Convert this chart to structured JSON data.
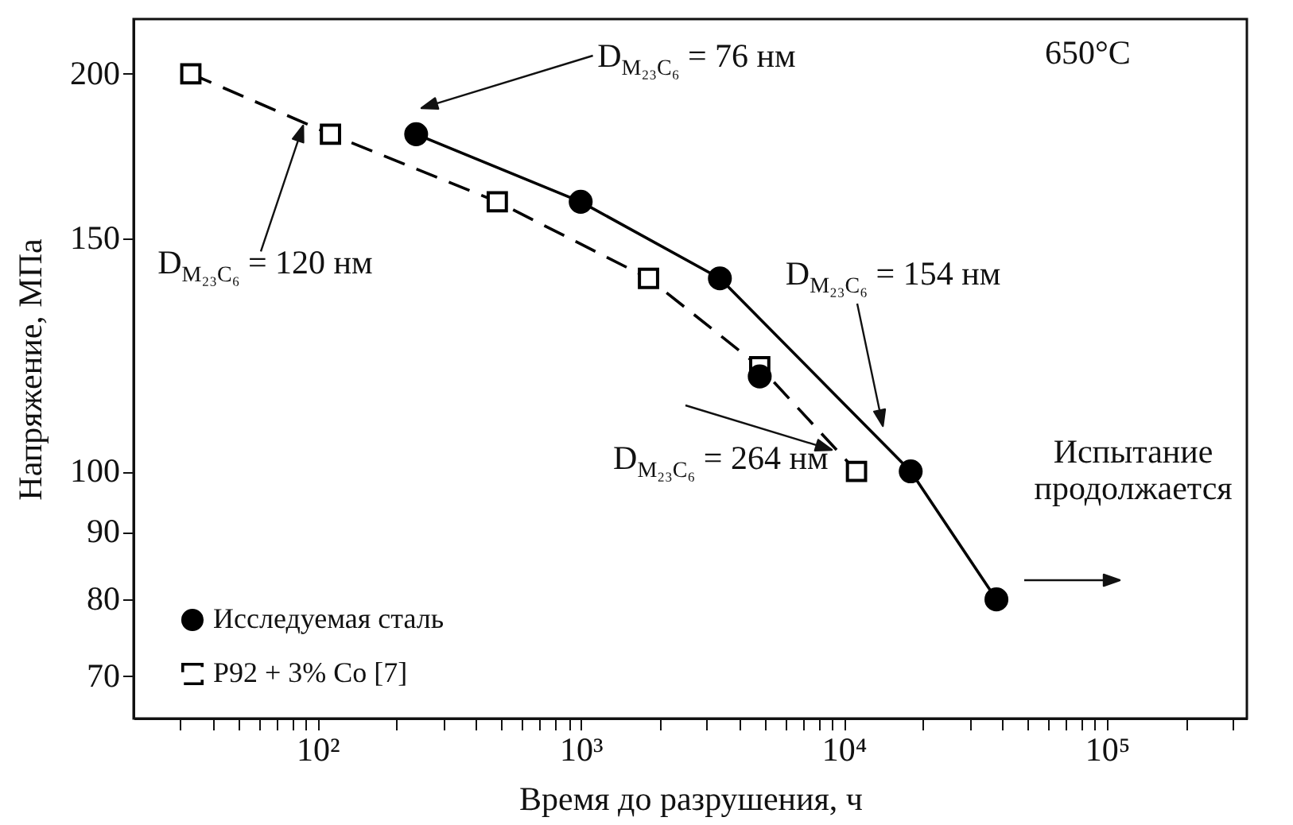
{
  "chart_data": {
    "type": "line",
    "xlabel": "Время до разрушения, ч",
    "ylabel": "Напряжение, МПа",
    "log": "xy",
    "xlim": [
      20,
      340000
    ],
    "ylim": [
      65,
      220
    ],
    "xticks": [
      {
        "value": 100,
        "label": "10²"
      },
      {
        "value": 1000,
        "label": "10³"
      },
      {
        "value": 10000,
        "label": "10⁴"
      },
      {
        "value": 100000,
        "label": "10⁵"
      },
      {
        "value": 30,
        "label": null
      },
      {
        "value": 40,
        "label": null
      },
      {
        "value": 50,
        "label": null
      },
      {
        "value": 60,
        "label": null
      },
      {
        "value": 70,
        "label": null
      },
      {
        "value": 80,
        "label": null
      },
      {
        "value": 90,
        "label": null
      },
      {
        "value": 200,
        "label": null
      },
      {
        "value": 300,
        "label": null
      },
      {
        "value": 400,
        "label": null
      },
      {
        "value": 500,
        "label": null
      },
      {
        "value": 600,
        "label": null
      },
      {
        "value": 700,
        "label": null
      },
      {
        "value": 800,
        "label": null
      },
      {
        "value": 900,
        "label": null
      },
      {
        "value": 2000,
        "label": null
      },
      {
        "value": 3000,
        "label": null
      },
      {
        "value": 4000,
        "label": null
      },
      {
        "value": 5000,
        "label": null
      },
      {
        "value": 6000,
        "label": null
      },
      {
        "value": 7000,
        "label": null
      },
      {
        "value": 8000,
        "label": null
      },
      {
        "value": 9000,
        "label": null
      },
      {
        "value": 20000,
        "label": null
      },
      {
        "value": 30000,
        "label": null
      },
      {
        "value": 40000,
        "label": null
      },
      {
        "value": 50000,
        "label": null
      },
      {
        "value": 60000,
        "label": null
      },
      {
        "value": 70000,
        "label": null
      },
      {
        "value": 80000,
        "label": null
      },
      {
        "value": 90000,
        "label": null
      },
      {
        "value": 200000,
        "label": null
      },
      {
        "value": 300000,
        "label": null
      }
    ],
    "yticks": [
      70,
      80,
      90,
      100,
      150,
      200
    ],
    "grid": false,
    "legend": "bottom left",
    "series": [
      {
        "name": "Исследуемая сталь",
        "type": "line",
        "marker": "circle",
        "line_style": "solid",
        "color": "#000000",
        "x": [
          237,
          1000,
          3380,
          17950,
          38000
        ],
        "values": [
          180,
          160,
          140,
          100,
          80
        ]
      },
      {
        "type": "scatter",
        "marker": "circle",
        "color": "#000000",
        "x": [
          4790
        ],
        "values": [
          118
        ]
      },
      {
        "name": "P92 + 3% Co [7]",
        "type": "line",
        "marker": "square",
        "line_style": "dashed",
        "color": "#000000",
        "x": [
          33,
          112,
          482,
          1810,
          4790,
          11170
        ],
        "values": [
          200,
          180,
          160,
          140,
          120,
          100
        ]
      }
    ],
    "annotations": [
      "D$_{M₂₃C₆}$ = 76 нм",
      "D$_{M₂₃C₆}$ = 120 нм",
      "D$_{M₂₃C₆}$ = 154 нм",
      {
        "text": "D$_{M₂₃C₆}$ = 264 нм",
        "x": 11170,
        "y": 100
      },
      "650°C",
      {
        "text": "Испытание продолжается",
        "x": 38000,
        "y": 80
      }
    ]
  }
}
